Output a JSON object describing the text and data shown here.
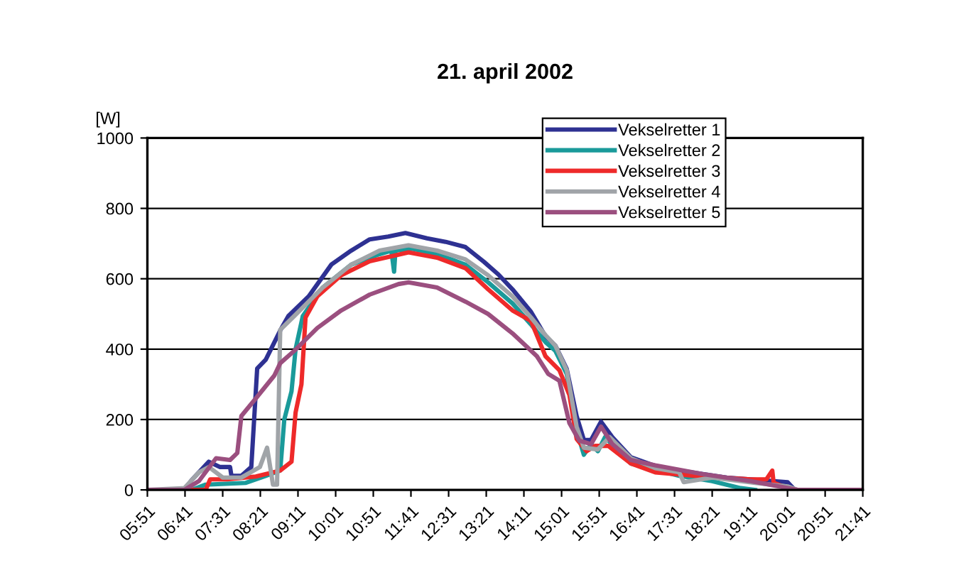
{
  "chart_data": {
    "type": "line",
    "title": "21. april 2002",
    "ylabel": "[W]",
    "xlim": [
      5.85,
      21.683
    ],
    "ylim": [
      0,
      1000
    ],
    "yticks": [
      0,
      200,
      400,
      600,
      800,
      1000
    ],
    "xticks": [
      {
        "value": 5.85,
        "label": "05:51"
      },
      {
        "value": 6.683,
        "label": "06:41"
      },
      {
        "value": 7.517,
        "label": "07:31"
      },
      {
        "value": 8.35,
        "label": "08:21"
      },
      {
        "value": 9.183,
        "label": "09:11"
      },
      {
        "value": 10.017,
        "label": "10:01"
      },
      {
        "value": 10.85,
        "label": "10:51"
      },
      {
        "value": 11.683,
        "label": "11:41"
      },
      {
        "value": 12.517,
        "label": "12:31"
      },
      {
        "value": 13.35,
        "label": "13:21"
      },
      {
        "value": 14.183,
        "label": "14:11"
      },
      {
        "value": 15.017,
        "label": "15:01"
      },
      {
        "value": 15.85,
        "label": "15:51"
      },
      {
        "value": 16.683,
        "label": "16:41"
      },
      {
        "value": 17.517,
        "label": "17:31"
      },
      {
        "value": 18.35,
        "label": "18:21"
      },
      {
        "value": 19.183,
        "label": "19:11"
      },
      {
        "value": 20.017,
        "label": "20:01"
      },
      {
        "value": 20.85,
        "label": "20:51"
      },
      {
        "value": 21.683,
        "label": "21:41"
      }
    ],
    "grid": "y",
    "legend": "top right",
    "marker": "none",
    "line_style": "solid",
    "series": [
      {
        "name": "Vekselretter 1",
        "color": "#2e3192",
        "x": [
          5.85,
          6.67,
          6.83,
          7.21,
          7.46,
          7.68,
          7.71,
          7.93,
          8.15,
          8.28,
          8.47,
          8.79,
          8.97,
          9.42,
          9.92,
          10.36,
          10.77,
          11.18,
          11.56,
          12.04,
          12.45,
          12.89,
          13.3,
          13.62,
          13.93,
          14.34,
          14.66,
          14.88,
          15.13,
          15.35,
          15.51,
          15.67,
          15.89,
          16.14,
          16.55,
          17.09,
          17.62,
          18.67,
          20.02,
          20.18
        ],
        "values": [
          0,
          0,
          28,
          80,
          65,
          65,
          40,
          40,
          65,
          345,
          370,
          453,
          494,
          550,
          640,
          680,
          712,
          720,
          730,
          715,
          705,
          690,
          648,
          612,
          570,
          506,
          437,
          410,
          344,
          210,
          142,
          142,
          194,
          150,
          93,
          68,
          55,
          35,
          22,
          0
        ]
      },
      {
        "name": "Vekselretter 2",
        "color": "#1a9a9a",
        "x": [
          5.85,
          6.83,
          7.14,
          8.03,
          8.47,
          8.79,
          8.88,
          9.04,
          9.13,
          9.29,
          9.73,
          10.36,
          10.99,
          11.25,
          11.31,
          11.34,
          11.72,
          12.26,
          12.89,
          13.39,
          13.93,
          14.34,
          14.66,
          14.88,
          15.13,
          15.35,
          15.51,
          15.67,
          15.82,
          15.98,
          16.55,
          17.62,
          18.35,
          18.98,
          19.3
        ],
        "values": [
          0,
          0,
          15,
          20,
          40,
          55,
          200,
          280,
          400,
          494,
          575,
          640,
          670,
          680,
          620,
          680,
          685,
          670,
          640,
          590,
          530,
          470,
          420,
          395,
          330,
          170,
          100,
          130,
          110,
          150,
          75,
          40,
          25,
          5,
          0
        ]
      },
      {
        "name": "Vekselretter 3",
        "color": "#ee2a2a",
        "x": [
          5.85,
          7.14,
          7.24,
          7.62,
          8.25,
          8.79,
          9.04,
          9.13,
          9.26,
          9.35,
          9.61,
          10.14,
          10.77,
          11.63,
          12.26,
          12.89,
          13.39,
          13.93,
          14.34,
          14.66,
          14.97,
          15.19,
          15.35,
          15.57,
          15.76,
          16.05,
          16.55,
          17.09,
          18.13,
          19.2,
          19.55,
          19.68,
          19.71,
          20.02,
          20.15
        ],
        "values": [
          0,
          0,
          30,
          30,
          38,
          55,
          80,
          220,
          300,
          490,
          550,
          610,
          650,
          675,
          660,
          630,
          570,
          510,
          480,
          380,
          340,
          270,
          145,
          110,
          125,
          125,
          75,
          50,
          38,
          30,
          30,
          55,
          20,
          5,
          0
        ]
      },
      {
        "name": "Vekselretter 4",
        "color": "#a0a4a8",
        "x": [
          5.85,
          6.67,
          6.99,
          7.21,
          7.52,
          7.93,
          8.34,
          8.5,
          8.63,
          8.72,
          8.79,
          9.1,
          9.73,
          10.36,
          10.99,
          11.63,
          12.26,
          12.89,
          13.39,
          13.93,
          14.34,
          14.66,
          14.88,
          15.13,
          15.35,
          15.51,
          15.82,
          16.08,
          16.55,
          17.09,
          17.62,
          17.72,
          18.35,
          19.3,
          20.02,
          20.24
        ],
        "values": [
          0,
          5,
          50,
          65,
          35,
          35,
          65,
          120,
          15,
          15,
          455,
          494,
          575,
          640,
          680,
          695,
          680,
          655,
          610,
          550,
          490,
          440,
          410,
          340,
          180,
          120,
          115,
          150,
          90,
          62,
          50,
          22,
          35,
          20,
          10,
          0
        ]
      },
      {
        "name": "Vekselretter 5",
        "color": "#9b4f7f",
        "x": [
          5.85,
          6.67,
          6.99,
          7.37,
          7.68,
          7.84,
          7.93,
          8.25,
          8.66,
          8.79,
          9.1,
          9.61,
          10.14,
          10.77,
          11.41,
          11.63,
          12.26,
          12.89,
          13.39,
          13.93,
          14.47,
          14.72,
          14.97,
          15.19,
          15.41,
          15.67,
          15.89,
          16.14,
          16.55,
          17.09,
          18.13,
          19.2,
          19.83,
          20.24,
          21.683
        ],
        "values": [
          0,
          0,
          25,
          90,
          85,
          105,
          210,
          260,
          325,
          360,
          395,
          460,
          510,
          555,
          585,
          590,
          575,
          535,
          500,
          445,
          380,
          330,
          310,
          190,
          140,
          130,
          180,
          130,
          85,
          70,
          45,
          25,
          10,
          0,
          0
        ]
      }
    ]
  }
}
